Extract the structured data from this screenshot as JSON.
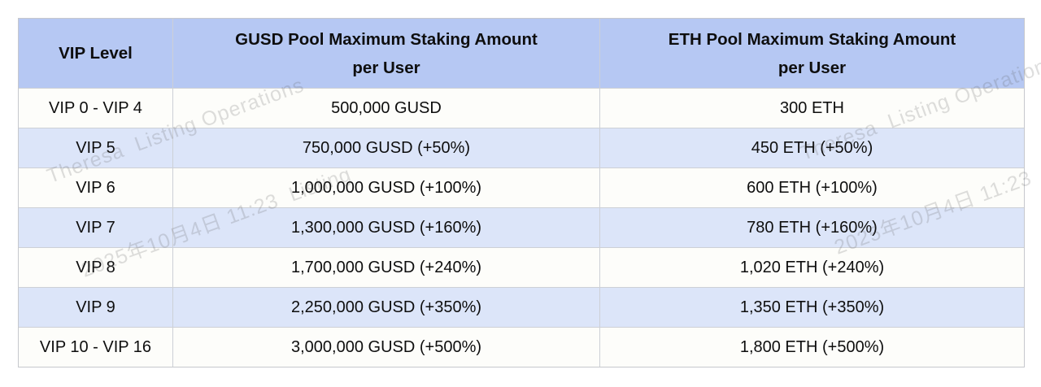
{
  "page": {
    "background_color": "#ffffff"
  },
  "watermark": {
    "line1": "Theresa  Listing Operations",
    "line2": "2025年10月4日 11:23  Listing",
    "color": "#5c5c5c"
  },
  "table": {
    "colors": {
      "header_bg": "#b6c8f3",
      "row_bg": "#fdfdfa",
      "row_alt_bg": "#dce5f9",
      "border": "#cdd0d6",
      "text": "#0e0e0e"
    },
    "header": {
      "vip_label": "VIP Level",
      "gusd_label_line1": "GUSD Pool Maximum Staking Amount",
      "gusd_label_line2": "per User",
      "eth_label_line1": "ETH Pool Maximum Staking Amount",
      "eth_label_line2": "per User"
    },
    "rows": [
      {
        "vip_level": "VIP 0 - VIP 4",
        "gusd": "500,000 GUSD",
        "eth": "300 ETH"
      },
      {
        "vip_level": "VIP 5",
        "gusd": "750,000 GUSD (+50%)",
        "eth": "450 ETH (+50%)"
      },
      {
        "vip_level": "VIP 6",
        "gusd": "1,000,000 GUSD (+100%)",
        "eth": "600 ETH (+100%)"
      },
      {
        "vip_level": "VIP 7",
        "gusd": "1,300,000 GUSD (+160%)",
        "eth": "780 ETH (+160%)"
      },
      {
        "vip_level": "VIP 8",
        "gusd": "1,700,000 GUSD (+240%)",
        "eth": "1,020 ETH (+240%)"
      },
      {
        "vip_level": "VIP 9",
        "gusd": "2,250,000 GUSD (+350%)",
        "eth": "1,350 ETH (+350%)"
      },
      {
        "vip_level": "VIP 10 - VIP 16",
        "gusd": "3,000,000 GUSD (+500%)",
        "eth": "1,800 ETH (+500%)"
      }
    ]
  }
}
